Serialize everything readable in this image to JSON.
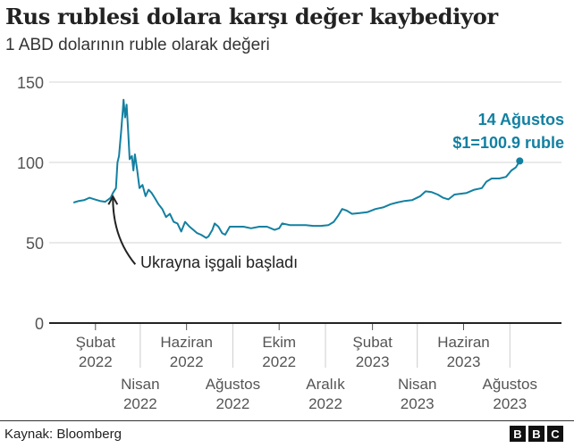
{
  "chart_data": {
    "type": "line",
    "title": "Rus rublesi dolara karşı değer kaybediyor",
    "subtitle": "1 ABD dolarının ruble olarak değeri",
    "ylim": [
      0,
      150
    ],
    "yticks": [
      0,
      50,
      100,
      150
    ],
    "xlim": [
      "2021-12-02",
      "2023-10-08"
    ],
    "xticks": [
      {
        "date": "2022-02-01",
        "line1": "Şubat",
        "line2": "2022",
        "row": 1
      },
      {
        "date": "2022-04-01",
        "line1": "Nisan",
        "line2": "2022",
        "row": 2
      },
      {
        "date": "2022-06-01",
        "line1": "Haziran",
        "line2": "2022",
        "row": 1
      },
      {
        "date": "2022-08-01",
        "line1": "Ağustos",
        "line2": "2022",
        "row": 2
      },
      {
        "date": "2022-10-01",
        "line1": "Ekim",
        "line2": "2022",
        "row": 1
      },
      {
        "date": "2022-12-01",
        "line1": "Aralık",
        "line2": "2022",
        "row": 2
      },
      {
        "date": "2023-02-01",
        "line1": "Şubat",
        "line2": "2023",
        "row": 1
      },
      {
        "date": "2023-04-01",
        "line1": "Nisan",
        "line2": "2023",
        "row": 2
      },
      {
        "date": "2023-06-01",
        "line1": "Haziran",
        "line2": "2023",
        "row": 1
      },
      {
        "date": "2023-08-01",
        "line1": "Ağustos",
        "line2": "2023",
        "row": 2
      }
    ],
    "series": [
      {
        "name": "USD/RUB",
        "color": "#1380a1",
        "points": [
          [
            "2022-01-03",
            75
          ],
          [
            "2022-01-10",
            76
          ],
          [
            "2022-01-17",
            76.5
          ],
          [
            "2022-01-24",
            78
          ],
          [
            "2022-01-31",
            77
          ],
          [
            "2022-02-07",
            76
          ],
          [
            "2022-02-14",
            75.5
          ],
          [
            "2022-02-21",
            78
          ],
          [
            "2022-02-24",
            81
          ],
          [
            "2022-02-28",
            84
          ],
          [
            "2022-03-02",
            100
          ],
          [
            "2022-03-04",
            104
          ],
          [
            "2022-03-07",
            120
          ],
          [
            "2022-03-09",
            132
          ],
          [
            "2022-03-10",
            139
          ],
          [
            "2022-03-12",
            128
          ],
          [
            "2022-03-14",
            136
          ],
          [
            "2022-03-16",
            120
          ],
          [
            "2022-03-18",
            102
          ],
          [
            "2022-03-21",
            104
          ],
          [
            "2022-03-23",
            95
          ],
          [
            "2022-03-25",
            105
          ],
          [
            "2022-03-28",
            95
          ],
          [
            "2022-03-31",
            84
          ],
          [
            "2022-04-04",
            86
          ],
          [
            "2022-04-08",
            79
          ],
          [
            "2022-04-12",
            83
          ],
          [
            "2022-04-16",
            81
          ],
          [
            "2022-04-20",
            78
          ],
          [
            "2022-04-25",
            74
          ],
          [
            "2022-04-30",
            71
          ],
          [
            "2022-05-05",
            66
          ],
          [
            "2022-05-10",
            68
          ],
          [
            "2022-05-15",
            63
          ],
          [
            "2022-05-20",
            62
          ],
          [
            "2022-05-25",
            57
          ],
          [
            "2022-05-30",
            63
          ],
          [
            "2022-06-05",
            60
          ],
          [
            "2022-06-10",
            58
          ],
          [
            "2022-06-15",
            56
          ],
          [
            "2022-06-20",
            55
          ],
          [
            "2022-06-27",
            53
          ],
          [
            "2022-06-30",
            54
          ],
          [
            "2022-07-05",
            58
          ],
          [
            "2022-07-08",
            62
          ],
          [
            "2022-07-13",
            60
          ],
          [
            "2022-07-18",
            56
          ],
          [
            "2022-07-22",
            55
          ],
          [
            "2022-07-28",
            60
          ],
          [
            "2022-08-05",
            60
          ],
          [
            "2022-08-15",
            60
          ],
          [
            "2022-08-25",
            59
          ],
          [
            "2022-09-05",
            60
          ],
          [
            "2022-09-15",
            60
          ],
          [
            "2022-09-25",
            58
          ],
          [
            "2022-10-01",
            59
          ],
          [
            "2022-10-05",
            62
          ],
          [
            "2022-10-15",
            61
          ],
          [
            "2022-10-25",
            61
          ],
          [
            "2022-11-05",
            61
          ],
          [
            "2022-11-15",
            60.5
          ],
          [
            "2022-11-25",
            60.5
          ],
          [
            "2022-12-05",
            61
          ],
          [
            "2022-12-12",
            63
          ],
          [
            "2022-12-18",
            67
          ],
          [
            "2022-12-23",
            71
          ],
          [
            "2022-12-29",
            70
          ],
          [
            "2023-01-05",
            68
          ],
          [
            "2023-01-15",
            68.5
          ],
          [
            "2023-01-25",
            69
          ],
          [
            "2023-02-05",
            71
          ],
          [
            "2023-02-15",
            72
          ],
          [
            "2023-02-25",
            74
          ],
          [
            "2023-03-05",
            75
          ],
          [
            "2023-03-15",
            76
          ],
          [
            "2023-03-25",
            76.5
          ],
          [
            "2023-04-05",
            79
          ],
          [
            "2023-04-12",
            82
          ],
          [
            "2023-04-20",
            81.5
          ],
          [
            "2023-04-28",
            80
          ],
          [
            "2023-05-05",
            78
          ],
          [
            "2023-05-12",
            77
          ],
          [
            "2023-05-20",
            80
          ],
          [
            "2023-05-28",
            80.5
          ],
          [
            "2023-06-05",
            81
          ],
          [
            "2023-06-15",
            83
          ],
          [
            "2023-06-25",
            84
          ],
          [
            "2023-07-01",
            88
          ],
          [
            "2023-07-08",
            90
          ],
          [
            "2023-07-18",
            90
          ],
          [
            "2023-07-27",
            91
          ],
          [
            "2023-08-03",
            95
          ],
          [
            "2023-08-09",
            97
          ],
          [
            "2023-08-14",
            100.9
          ]
        ]
      }
    ],
    "annotations": [
      {
        "text": "Ukrayna işgali başladı",
        "date": "2022-02-24",
        "value": 81
      },
      {
        "line1": "14 Ağustos",
        "line2": "$1=100.9 ruble",
        "date": "2023-08-14",
        "value": 100.9
      }
    ],
    "grid": true
  },
  "footer": {
    "source": "Kaynak: Bloomberg",
    "logo": [
      "B",
      "B",
      "C"
    ]
  }
}
